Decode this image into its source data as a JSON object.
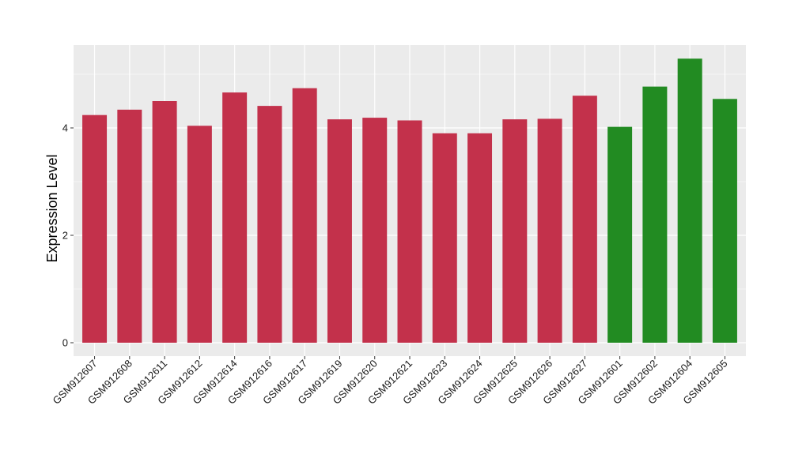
{
  "chart_data": {
    "type": "bar",
    "title": "",
    "xlabel": "",
    "ylabel": "Expression Level",
    "ylim": [
      0,
      5.55
    ],
    "yticks": [
      0,
      2,
      4
    ],
    "grid": true,
    "categories": [
      "GSM912607",
      "GSM912608",
      "GSM912611",
      "GSM912612",
      "GSM912614",
      "GSM912616",
      "GSM912617",
      "GSM912619",
      "GSM912620",
      "GSM912621",
      "GSM912623",
      "GSM912624",
      "GSM912625",
      "GSM912626",
      "GSM912627",
      "GSM912601",
      "GSM912602",
      "GSM912604",
      "GSM912605"
    ],
    "values": [
      4.24,
      4.34,
      4.5,
      4.04,
      4.66,
      4.41,
      4.74,
      4.16,
      4.19,
      4.14,
      3.9,
      3.9,
      4.16,
      4.17,
      4.6,
      4.02,
      4.77,
      5.29,
      4.54
    ],
    "bar_colors": [
      "#c3314b",
      "#c3314b",
      "#c3314b",
      "#c3314b",
      "#c3314b",
      "#c3314b",
      "#c3314b",
      "#c3314b",
      "#c3314b",
      "#c3314b",
      "#c3314b",
      "#c3314b",
      "#c3314b",
      "#c3314b",
      "#c3314b",
      "#228b22",
      "#228b22",
      "#228b22",
      "#228b22"
    ],
    "panel_background": "#ebebeb",
    "grid_color": "#ffffff"
  }
}
